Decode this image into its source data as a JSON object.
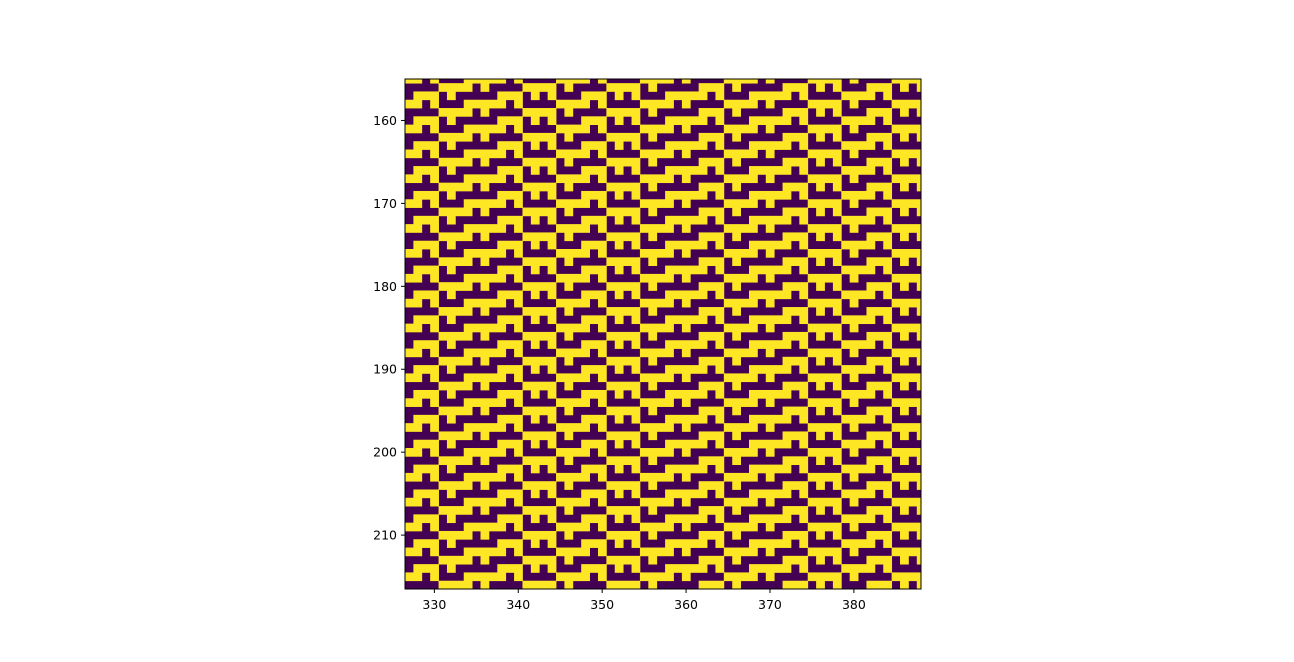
{
  "chart_data": {
    "type": "heatmap",
    "title": "",
    "xlabel": "",
    "ylabel": "",
    "colormap": "viridis",
    "colors": {
      "low": "#440154",
      "high": "#fde725"
    },
    "value_range": [
      0,
      1
    ],
    "x_range": [
      326.5,
      388.0
    ],
    "y_range": [
      155.0,
      216.5
    ],
    "y_inverted": true,
    "grid": false,
    "x_ticks": [
      330,
      340,
      350,
      360,
      370,
      380
    ],
    "x_tick_labels": [
      "330",
      "340",
      "350",
      "360",
      "370",
      "380"
    ],
    "y_ticks": [
      160,
      170,
      180,
      190,
      200,
      210
    ],
    "y_tick_labels": [
      "160",
      "170",
      "180",
      "190",
      "200",
      "210"
    ],
    "pattern": "binary staircase texture: alternating horizontal yellow bands with comb teeth, stepping down toward the left"
  }
}
